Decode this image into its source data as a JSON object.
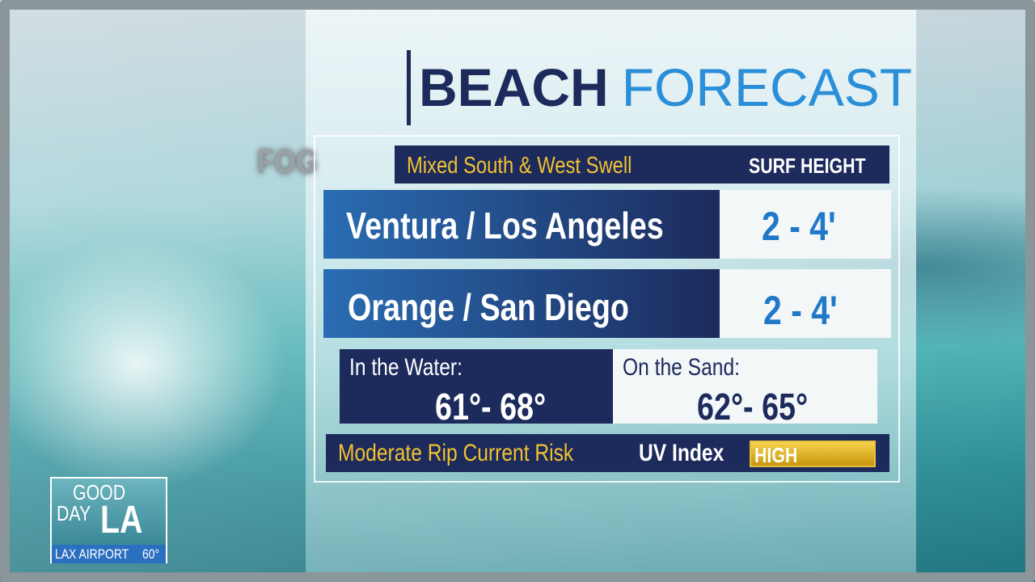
{
  "title": {
    "bold": "BEACH",
    "light": "FORECAST"
  },
  "fog_label": "FOG",
  "header": {
    "left": "Mixed South & West Swell",
    "right": "SURF HEIGHT"
  },
  "rows": [
    {
      "region": "Ventura / Los Angeles",
      "surf": "2 - 4'"
    },
    {
      "region": "Orange / San Diego",
      "surf": "2 - 4'"
    }
  ],
  "water": {
    "label": "In the Water:",
    "value": "61°- 68°"
  },
  "sand": {
    "label": "On the Sand:",
    "value": "62°- 65°"
  },
  "footer": {
    "rip": "Moderate Rip Current Risk",
    "uv_label": "UV Index",
    "uv_value": "HIGH"
  },
  "logo": {
    "line1": "GOOD",
    "line2": "DAY",
    "line3": "LA",
    "location": "LAX AIRPORT",
    "temp": "60°"
  }
}
